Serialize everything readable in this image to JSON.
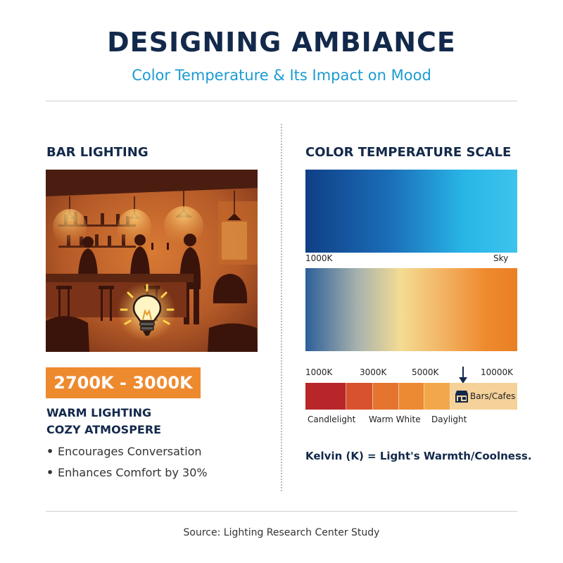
{
  "header": {
    "title": "DESIGNING AMBIANCE",
    "subtitle": "Color Temperature & Its Impact on Mood"
  },
  "left": {
    "heading": "BAR LIGHTING",
    "badge": "2700K - 3000K",
    "tagline_1": "WARM LIGHTING",
    "tagline_2": "COZY ATMOSPERE",
    "bullets": [
      "Encourages Conversation",
      "Enhances Comfort by 30%"
    ],
    "bullet_glyph": "•"
  },
  "right": {
    "heading": "COLOR TEMPERATURE SCALE",
    "cool_bar": {
      "left_label": "1000K",
      "right_label": "Sky"
    },
    "scale_ticks": [
      "1000K",
      "3000K",
      "5000K",
      "10000K"
    ],
    "strip_labels": [
      "Candlelight",
      "Warm White",
      "Daylight"
    ],
    "marker_label": "Bars/Cafes",
    "formula": "Kelvin (K) = Light's Warmth/Coolness."
  },
  "footer": {
    "source": "Source: Lighting Research Center Study"
  },
  "colors": {
    "navy": "#13294b",
    "accent_blue": "#1b9bd1",
    "accent_orange": "#ee8a2e",
    "strip": [
      "#b8262a",
      "#d9522e",
      "#e5742f",
      "#ec8a34",
      "#f2a84a",
      "#f5d29a"
    ]
  },
  "icons": [
    "light-bulb-icon",
    "down-arrow-icon",
    "storefront-icon"
  ]
}
